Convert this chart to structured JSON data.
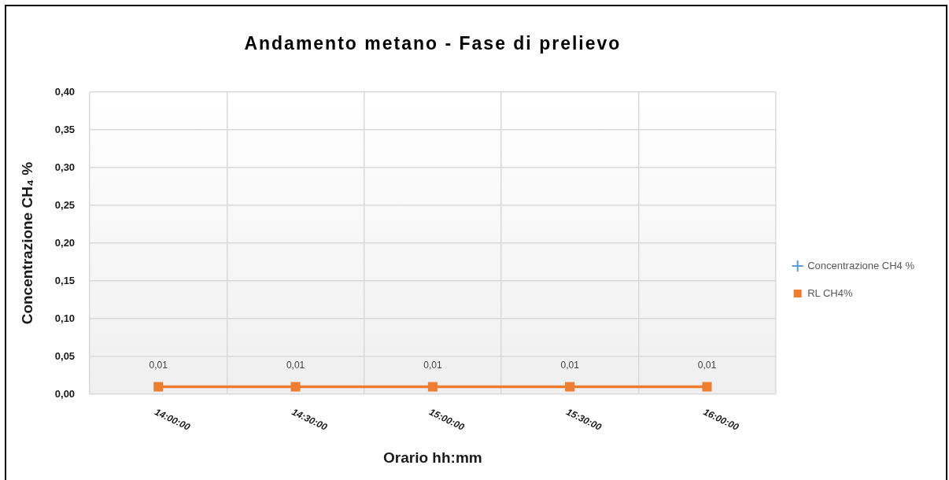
{
  "chart_data": {
    "type": "line",
    "title": "Andamento metano - Fase di prelievo",
    "xlabel": "Orario hh:mm",
    "ylabel": "Concentrazione CH₄ %",
    "categories": [
      "14:00:00",
      "14:30:00",
      "15:00:00",
      "15:30:00",
      "16:00:00"
    ],
    "series": [
      {
        "name": "Concentrazione CH4 %",
        "color": "#5b9bd5",
        "marker": "cross",
        "values": [
          null,
          null,
          null,
          null,
          null
        ]
      },
      {
        "name": "RL CH4%",
        "color": "#ed7d31",
        "marker": "square",
        "values": [
          0.01,
          0.01,
          0.01,
          0.01,
          0.01
        ],
        "value_labels": [
          "0,01",
          "0,01",
          "0,01",
          "0,01",
          "0,01"
        ]
      }
    ],
    "ylim": [
      0,
      0.4
    ],
    "yticks": [
      {
        "value": 0,
        "label": "0,00"
      },
      {
        "value": 0.05,
        "label": "0,05"
      },
      {
        "value": 0.1,
        "label": "0,10"
      },
      {
        "value": 0.15,
        "label": "0,15"
      },
      {
        "value": 0.2,
        "label": "0,20"
      },
      {
        "value": 0.25,
        "label": "0,25"
      },
      {
        "value": 0.3,
        "label": "0,30"
      },
      {
        "value": 0.35,
        "label": "0,35"
      },
      {
        "value": 0.4,
        "label": "0,40"
      }
    ],
    "grid": true,
    "legend": "right",
    "line_style": "solid"
  }
}
